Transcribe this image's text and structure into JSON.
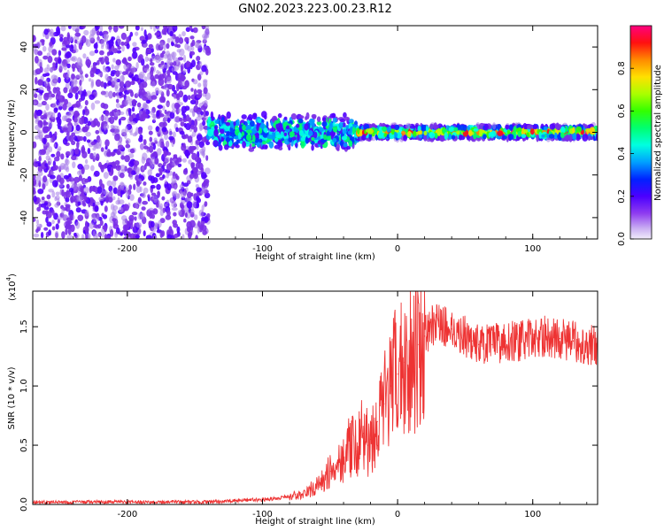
{
  "figure": {
    "title": "GN02.2023.223.00.23.R12"
  },
  "colors": {
    "snr_line": "#ee3333",
    "colormap": [
      "#e6d9f7",
      "#a57be9",
      "#7a2ee8",
      "#5200ff",
      "#0033ff",
      "#0099ff",
      "#00ffe6",
      "#00ff66",
      "#33ff00",
      "#b3ff00",
      "#ffd400",
      "#ff7f00",
      "#ff0022",
      "#ff0077"
    ]
  },
  "chart_data": [
    {
      "type": "heatmap",
      "title": "",
      "xlabel": "Height of straight line (km)",
      "ylabel": "Frequency (Hz)",
      "xlim": [
        -270,
        148
      ],
      "ylim": [
        -50,
        50
      ],
      "xticks": [
        -200,
        -100,
        0,
        100
      ],
      "xtick_labels": [
        "-200",
        "-100",
        "0",
        "100"
      ],
      "yticks": [
        -40,
        -20,
        0,
        20,
        40
      ],
      "ytick_labels": [
        "-40",
        "-20",
        "0",
        "20",
        "40"
      ],
      "colorbar": {
        "label": "Normalized spectral amplitude",
        "range": [
          0,
          1
        ],
        "ticks": [
          0.0,
          0.2,
          0.4,
          0.6,
          0.8
        ],
        "tick_labels": [
          "0.0",
          "0.2",
          "0.4",
          "0.6",
          "0.8"
        ]
      },
      "description_regions": [
        {
          "x": [
            -270,
            -140
          ],
          "freq": [
            -50,
            50
          ],
          "amplitude": 0.08,
          "pattern": "broadband noise"
        },
        {
          "x": [
            -140,
            -30
          ],
          "freq": [
            -10,
            10
          ],
          "amplitude": 0.4,
          "pattern": "scattered signal"
        },
        {
          "x": [
            -30,
            148
          ],
          "freq": [
            -3,
            3
          ],
          "amplitude": 0.9,
          "pattern": "narrow band at 0 Hz"
        }
      ]
    },
    {
      "type": "line",
      "title": "",
      "xlabel": "Height of straight line (km)",
      "ylabel": "SNR (10 * v/v)",
      "y_multiplier_label": "(x10",
      "y_multiplier_exp": "4",
      "y_multiplier_close": ")",
      "xlim": [
        -270,
        148
      ],
      "ylim": [
        0,
        1.8
      ],
      "xticks": [
        -200,
        -100,
        0,
        100
      ],
      "xtick_labels": [
        "-200",
        "-100",
        "0",
        "100"
      ],
      "yticks": [
        0.0,
        0.5,
        1.0,
        1.5
      ],
      "ytick_labels": [
        "0.0",
        "0.5",
        "1.0",
        "1.5"
      ],
      "series": [
        {
          "x": [
            -270,
            -240,
            -210,
            -180,
            -150,
            -140,
            -120,
            -110,
            -100,
            -90,
            -80,
            -70,
            -65,
            -60,
            -55,
            -50,
            -45,
            -40,
            -35,
            -30,
            -28,
            -25,
            -22,
            -20,
            -15,
            -10,
            -5,
            0,
            5,
            10,
            15,
            20,
            25,
            30,
            35,
            40,
            45,
            50,
            55,
            60,
            70,
            80,
            90,
            100,
            110,
            120,
            130,
            140,
            148
          ],
          "y": [
            0.02,
            0.02,
            0.02,
            0.02,
            0.02,
            0.02,
            0.03,
            0.04,
            0.04,
            0.05,
            0.07,
            0.08,
            0.12,
            0.15,
            0.2,
            0.28,
            0.35,
            0.4,
            0.5,
            0.45,
            0.55,
            0.6,
            0.5,
            0.55,
            0.7,
            0.85,
            1.0,
            1.1,
            1.2,
            1.28,
            1.35,
            1.42,
            1.5,
            1.55,
            1.5,
            1.48,
            1.45,
            1.42,
            1.38,
            1.35,
            1.35,
            1.38,
            1.38,
            1.4,
            1.42,
            1.4,
            1.38,
            1.35,
            1.35
          ]
        }
      ]
    }
  ]
}
